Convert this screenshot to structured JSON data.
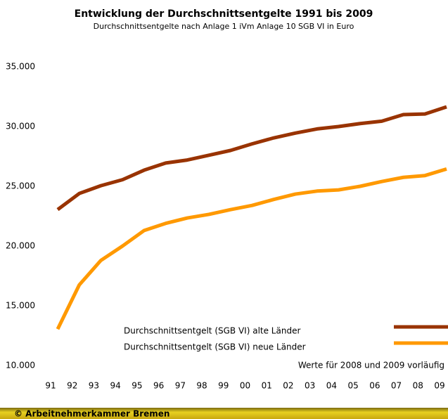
{
  "chart_data": {
    "type": "line",
    "title": "Entwicklung der Durchschnittsentgelte 1991 bis 2009",
    "subtitle": "Durchschnittsentgelte nach Anlage 1 iVm Anlage 10 SGB VI in Euro",
    "note": "Werte für 2008 und 2009 vorläufig",
    "footer": "© Arbeitnehmerkammer Bremen",
    "categories": [
      "91",
      "92",
      "93",
      "94",
      "95",
      "96",
      "97",
      "98",
      "99",
      "00",
      "01",
      "02",
      "03",
      "04",
      "05",
      "06",
      "07",
      "08",
      "09"
    ],
    "series": [
      {
        "name": "Durchschnittsentgelt (SGB VI) alte Länder",
        "color": "#993300",
        "values": [
          23050,
          24400,
          25050,
          25550,
          26350,
          26950,
          27200,
          27600,
          28000,
          28550,
          29050,
          29450,
          29800,
          30000,
          30250,
          30450,
          31000,
          31050,
          31650
        ]
      },
      {
        "name": "Durchschnittsentgelt (SGB VI) neue Länder",
        "color": "#ff9900",
        "values": [
          13050,
          16750,
          18800,
          20000,
          21300,
          21900,
          22350,
          22650,
          23050,
          23400,
          23900,
          24350,
          24600,
          24700,
          25000,
          25400,
          25750,
          25900,
          26450
        ]
      }
    ],
    "ylim": [
      10000,
      35000
    ],
    "yticks": [
      {
        "value": 10000,
        "label": "10.000"
      },
      {
        "value": 15000,
        "label": "15.000"
      },
      {
        "value": 20000,
        "label": "20.000"
      },
      {
        "value": 25000,
        "label": "25.000"
      },
      {
        "value": 30000,
        "label": "30.000"
      },
      {
        "value": 35000,
        "label": "35.000"
      }
    ],
    "grid": false
  }
}
